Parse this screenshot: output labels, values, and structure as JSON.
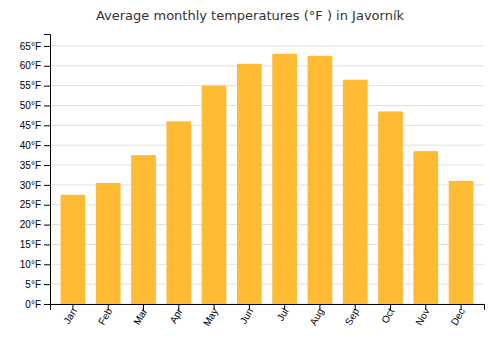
{
  "chart_data": {
    "type": "bar",
    "title": "Average monthly temperatures (°F ) in Javorník",
    "categories": [
      "Jan",
      "Feb",
      "Mar",
      "Apr",
      "May",
      "Jun",
      "Jul",
      "Aug",
      "Sep",
      "Oct",
      "Nov",
      "Dec"
    ],
    "values": [
      27.5,
      30.5,
      37.5,
      46.0,
      55.0,
      60.5,
      63.0,
      62.5,
      56.5,
      48.5,
      38.5,
      31.0
    ],
    "color": "#FFBB33",
    "ylim": [
      0,
      68
    ],
    "yticks": [
      {
        "value": 0,
        "label": "0°F"
      },
      {
        "value": 5,
        "label": "5°F"
      },
      {
        "value": 10,
        "label": "10°F"
      },
      {
        "value": 15,
        "label": "15°F"
      },
      {
        "value": 20,
        "label": "20°F"
      },
      {
        "value": 25,
        "label": "25°F"
      },
      {
        "value": 30,
        "label": "30°F"
      },
      {
        "value": 35,
        "label": "35°F"
      },
      {
        "value": 40,
        "label": "40°F"
      },
      {
        "value": 45,
        "label": "45°F"
      },
      {
        "value": 50,
        "label": "50°F"
      },
      {
        "value": 55,
        "label": "55°F"
      },
      {
        "value": 60,
        "label": "60°F"
      },
      {
        "value": 65,
        "label": "65°F"
      }
    ],
    "grid": true
  }
}
